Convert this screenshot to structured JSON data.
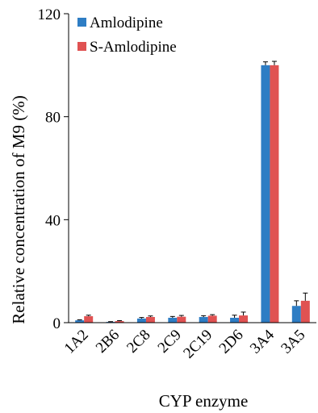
{
  "chart_data": {
    "type": "bar",
    "title": "",
    "xlabel": "CYP enzyme",
    "ylabel": "Relative concentration of M9 (%)",
    "ylim": [
      0,
      120
    ],
    "yticks": [
      "0",
      "40",
      "80",
      "120"
    ],
    "grid": false,
    "legend_position": "top-left",
    "categories": [
      "1A2",
      "2B6",
      "2C8",
      "2C9",
      "2C19",
      "2D6",
      "3A4",
      "3A5"
    ],
    "series": [
      {
        "name": "Amlodipine",
        "color": "#2e7dc4",
        "values": [
          0.9,
          0.3,
          1.6,
          1.9,
          2.2,
          1.9,
          100,
          6.5
        ],
        "errors": [
          0.2,
          0.1,
          0.4,
          0.5,
          0.5,
          1.0,
          1.3,
          2.0
        ]
      },
      {
        "name": "S-Amlodipine",
        "color": "#e05252",
        "values": [
          2.5,
          0.6,
          2.2,
          2.3,
          2.7,
          2.8,
          100,
          8.5
        ],
        "errors": [
          0.4,
          0.2,
          0.4,
          0.5,
          0.4,
          1.3,
          1.5,
          3.0
        ]
      }
    ]
  }
}
